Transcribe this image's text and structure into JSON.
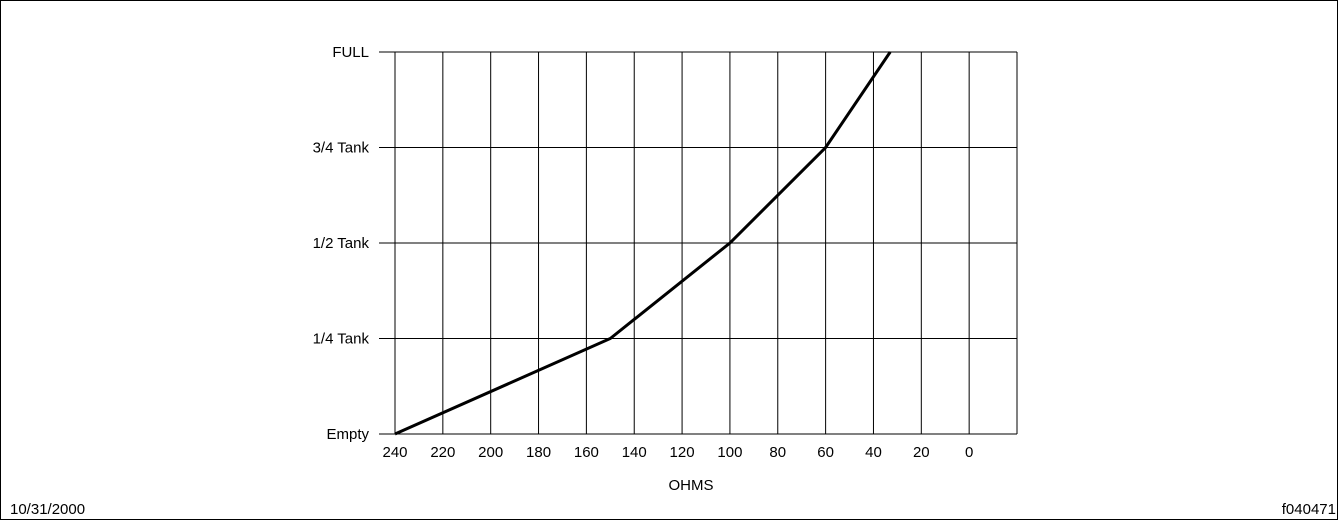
{
  "chart_data": {
    "type": "line",
    "xlabel": "OHMS",
    "ylabel": "",
    "x_ticks": [
      "240",
      "220",
      "200",
      "180",
      "160",
      "140",
      "120",
      "100",
      "80",
      "60",
      "40",
      "20",
      "0"
    ],
    "y_ticks": [
      "Empty",
      "1/4 Tank",
      "1/2 Tank",
      "3/4 Tank",
      "FULL"
    ],
    "x_reversed": true,
    "xlim": [
      240,
      -20
    ],
    "ylim": [
      0,
      1
    ],
    "grid": true,
    "series": [
      {
        "x": [
          240,
          150,
          100,
          60,
          33
        ],
        "y": [
          0,
          0.25,
          0.5,
          0.75,
          1.0
        ]
      }
    ]
  },
  "footer": {
    "date": "10/31/2000",
    "figure_id": "f040471"
  },
  "colors": {
    "line": "#000000",
    "grid": "#000000",
    "background": "#ffffff"
  }
}
